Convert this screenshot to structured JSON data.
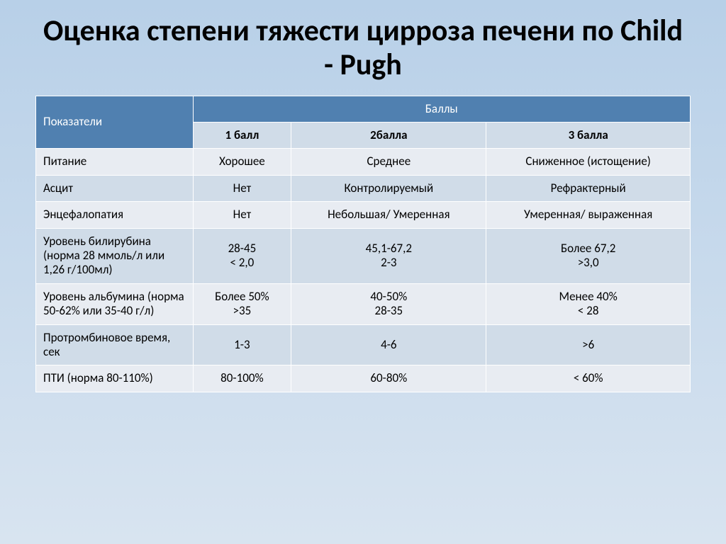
{
  "title": "Оценка степени тяжести цирроза печени по Child - Pugh",
  "table": {
    "header": {
      "indicators": "Показатели",
      "scores": "Баллы",
      "score1": "1 балл",
      "score2": "2балла",
      "score3": "3 балла"
    },
    "rows": [
      {
        "label": "Питание",
        "c1": "Хорошее",
        "c2": "Среднее",
        "c3": "Сниженное (истощение)"
      },
      {
        "label": "Асцит",
        "c1": "Нет",
        "c2": "Контролируемый",
        "c3": "Рефрактерный"
      },
      {
        "label": "Энцефалопатия",
        "c1": "Нет",
        "c2": "Небольшая/ Умеренная",
        "c3": "Умеренная/ выраженная"
      },
      {
        "label": "Уровень билирубина (норма 28 ммоль/л или 1,26 г/100мл)",
        "c1": "28-45\n< 2,0",
        "c2": "45,1-67,2\n2-3",
        "c3": "Более 67,2\n>3,0"
      },
      {
        "label": "Уровень альбумина (норма 50-62% или 35-40 г/л)",
        "c1": "Более 50%\n>35",
        "c2": "40-50%\n28-35",
        "c3": "Менее 40%\n< 28"
      },
      {
        "label": "Протромбиновое время, сек",
        "c1": "1-3",
        "c2": "4-6",
        "c3": ">6"
      },
      {
        "label": "ПТИ (норма 80-110%)",
        "c1": "80-100%",
        "c2": "60-80%",
        "c3": "< 60%"
      }
    ]
  },
  "styles": {
    "type": "table",
    "background_gradient": [
      "#b8d0e8",
      "#d8e4f0"
    ],
    "title_color": "#000000",
    "title_fontsize": 42,
    "title_fontweight": "bold",
    "header_bg": "#5080b0",
    "header_fg": "#ffffff",
    "subheader_bg": "#d0dce8",
    "row_alt_a_bg": "#e8ecf2",
    "row_alt_b_bg": "#d0dce8",
    "cell_fontsize": 17,
    "cell_border_color": "#ffffff",
    "column_widths_pct": [
      24,
      25.33,
      25.33,
      25.33
    ],
    "font_family": "Calibri"
  }
}
